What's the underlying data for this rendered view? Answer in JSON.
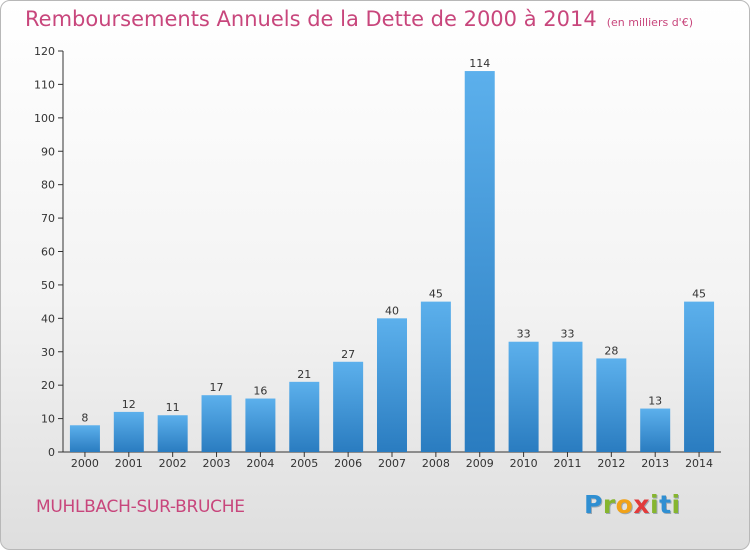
{
  "header": {
    "title": "Remboursements Annuels de la Dette de 2000 à 2014",
    "unit": "(en milliers d'€)"
  },
  "footer": {
    "commune": "MUHLBACH-SUR-BRUCHE",
    "logo": "Proxiti"
  },
  "colors": {
    "accent": "#c8467c",
    "bar_top": "#5cb0ec",
    "bar_bottom": "#2a7cc0"
  },
  "chart_data": {
    "type": "bar",
    "title": "Remboursements Annuels de la Dette de 2000 à 2014",
    "subtitle": "(en milliers d'€)",
    "categories": [
      "2000",
      "2001",
      "2002",
      "2003",
      "2004",
      "2005",
      "2006",
      "2007",
      "2008",
      "2009",
      "2010",
      "2011",
      "2012",
      "2013",
      "2014"
    ],
    "values": [
      8,
      12,
      11,
      17,
      16,
      21,
      27,
      40,
      45,
      114,
      33,
      33,
      28,
      13,
      45
    ],
    "ylim": [
      0,
      120
    ],
    "yticks": [
      0,
      10,
      20,
      30,
      40,
      50,
      60,
      70,
      80,
      90,
      100,
      110,
      120
    ],
    "grid": false,
    "xlabel": "",
    "ylabel": ""
  }
}
